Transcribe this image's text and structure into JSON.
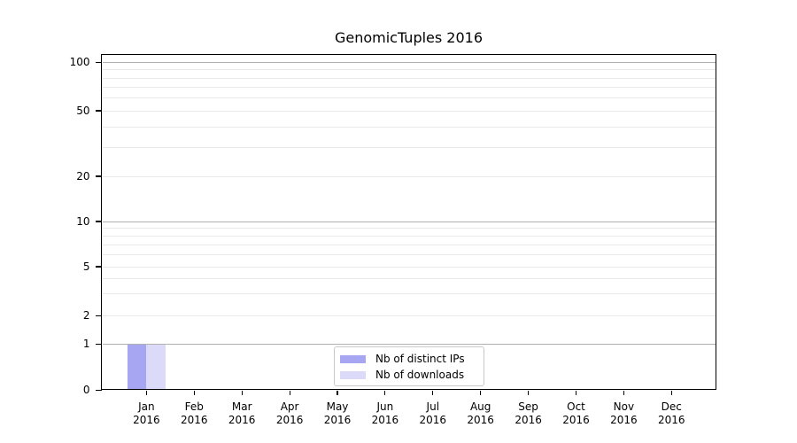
{
  "chart_data": {
    "type": "bar",
    "title": "GenomicTuples 2016",
    "categories": [
      "Jan",
      "Feb",
      "Mar",
      "Apr",
      "May",
      "Jun",
      "Jul",
      "Aug",
      "Sep",
      "Oct",
      "Nov",
      "Dec"
    ],
    "x_tick_second_line": "2016",
    "series": [
      {
        "name": "Nb of distinct IPs",
        "color": "#a6a6f3",
        "values": [
          1,
          0,
          0,
          0,
          0,
          0,
          0,
          0,
          0,
          0,
          0,
          0
        ]
      },
      {
        "name": "Nb of downloads",
        "color": "#dbdbf9",
        "values": [
          1,
          0,
          0,
          0,
          0,
          0,
          0,
          0,
          0,
          0,
          0,
          0
        ]
      }
    ],
    "y_axis": {
      "scale": "log-like with zero baseline",
      "major_ticks": [
        0,
        1,
        2,
        5,
        10,
        20,
        50,
        100
      ],
      "major_gridlines": [
        1,
        10,
        100
      ],
      "minor_gridlines": [
        2,
        3,
        4,
        5,
        6,
        7,
        8,
        9,
        20,
        30,
        40,
        50,
        60,
        70,
        80,
        90
      ],
      "range": [
        0,
        100
      ]
    },
    "legend": {
      "position": "bottom-center-inside",
      "entries": [
        "Nb of distinct IPs",
        "Nb of downloads"
      ]
    },
    "grid": true,
    "colors": {
      "major_grid": "#b0b0b0",
      "minor_grid": "#e9e9e9",
      "spine": "#000000",
      "text": "#000000",
      "legend_border": "#c9c9c9"
    }
  }
}
